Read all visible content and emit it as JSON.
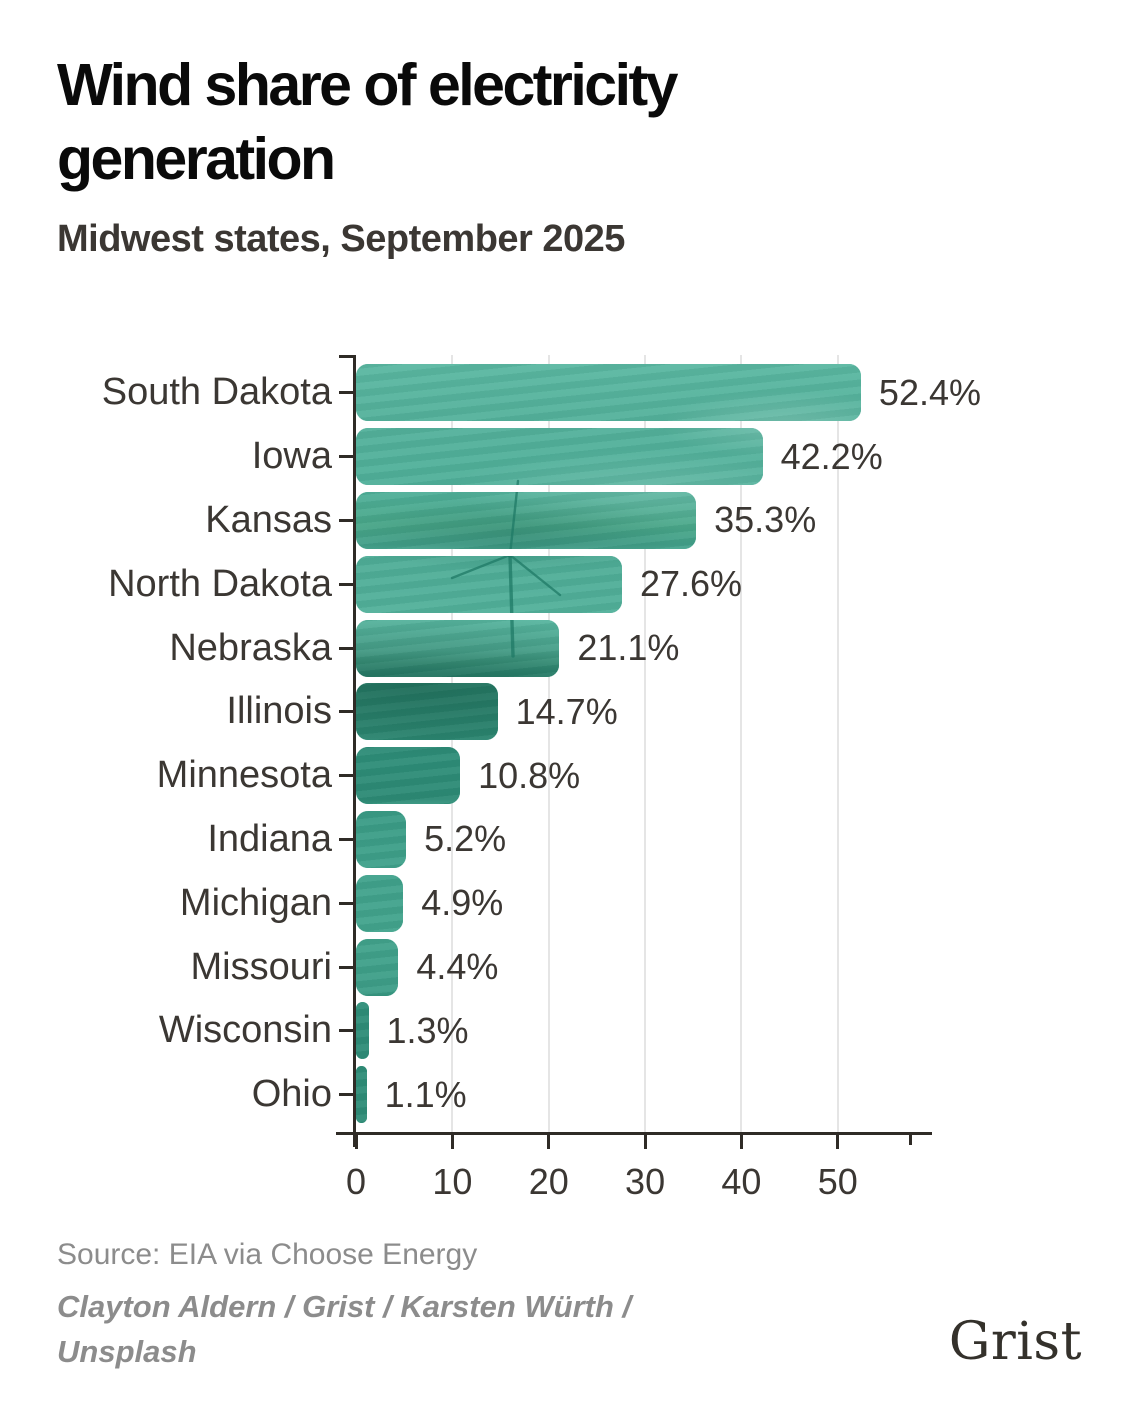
{
  "header": {
    "title_line1": "Wind share of electricity",
    "title_line2": "generation",
    "subtitle": "Midwest states, September 2025"
  },
  "chart_data": {
    "type": "bar",
    "orientation": "horizontal",
    "title": "Wind share of electricity generation",
    "subtitle": "Midwest states, September 2025",
    "categories": [
      "South Dakota",
      "Iowa",
      "Kansas",
      "North Dakota",
      "Nebraska",
      "Illinois",
      "Minnesota",
      "Indiana",
      "Michigan",
      "Missouri",
      "Wisconsin",
      "Ohio"
    ],
    "values": [
      52.4,
      42.2,
      35.3,
      27.6,
      21.1,
      14.7,
      10.8,
      5.2,
      4.9,
      4.4,
      1.3,
      1.1
    ],
    "value_labels": [
      "52.4%",
      "42.2%",
      "35.3%",
      "27.6%",
      "21.1%",
      "14.7%",
      "10.8%",
      "5.2%",
      "4.9%",
      "4.4%",
      "1.3%",
      "1.1%"
    ],
    "xlabel": "",
    "ylabel": "",
    "xticks": [
      0,
      10,
      20,
      30,
      40,
      50
    ],
    "xlim": [
      0,
      57.7
    ],
    "grid": "vertical-light-gray",
    "legend": "none",
    "bar_fill_note": "teal-tinted wind-turbine photo clipped inside rounded bars"
  },
  "footer": {
    "source": "Source: EIA via Choose Energy",
    "credit_line1": "Clayton Aldern / Grist / Karsten Würth /",
    "credit_line2": "Unsplash",
    "logo_text": "Grist"
  },
  "colors": {
    "bar_teal": "#4aab93",
    "bar_dark_teal": "#2e8a75",
    "text_dark": "#3b3733",
    "title_black": "#0a0a0a",
    "axis": "#2f2b26",
    "gridline": "#e5e5e5",
    "muted_gray": "#8c8c8c",
    "logo_color": "#34312b",
    "background": "#ffffff"
  }
}
